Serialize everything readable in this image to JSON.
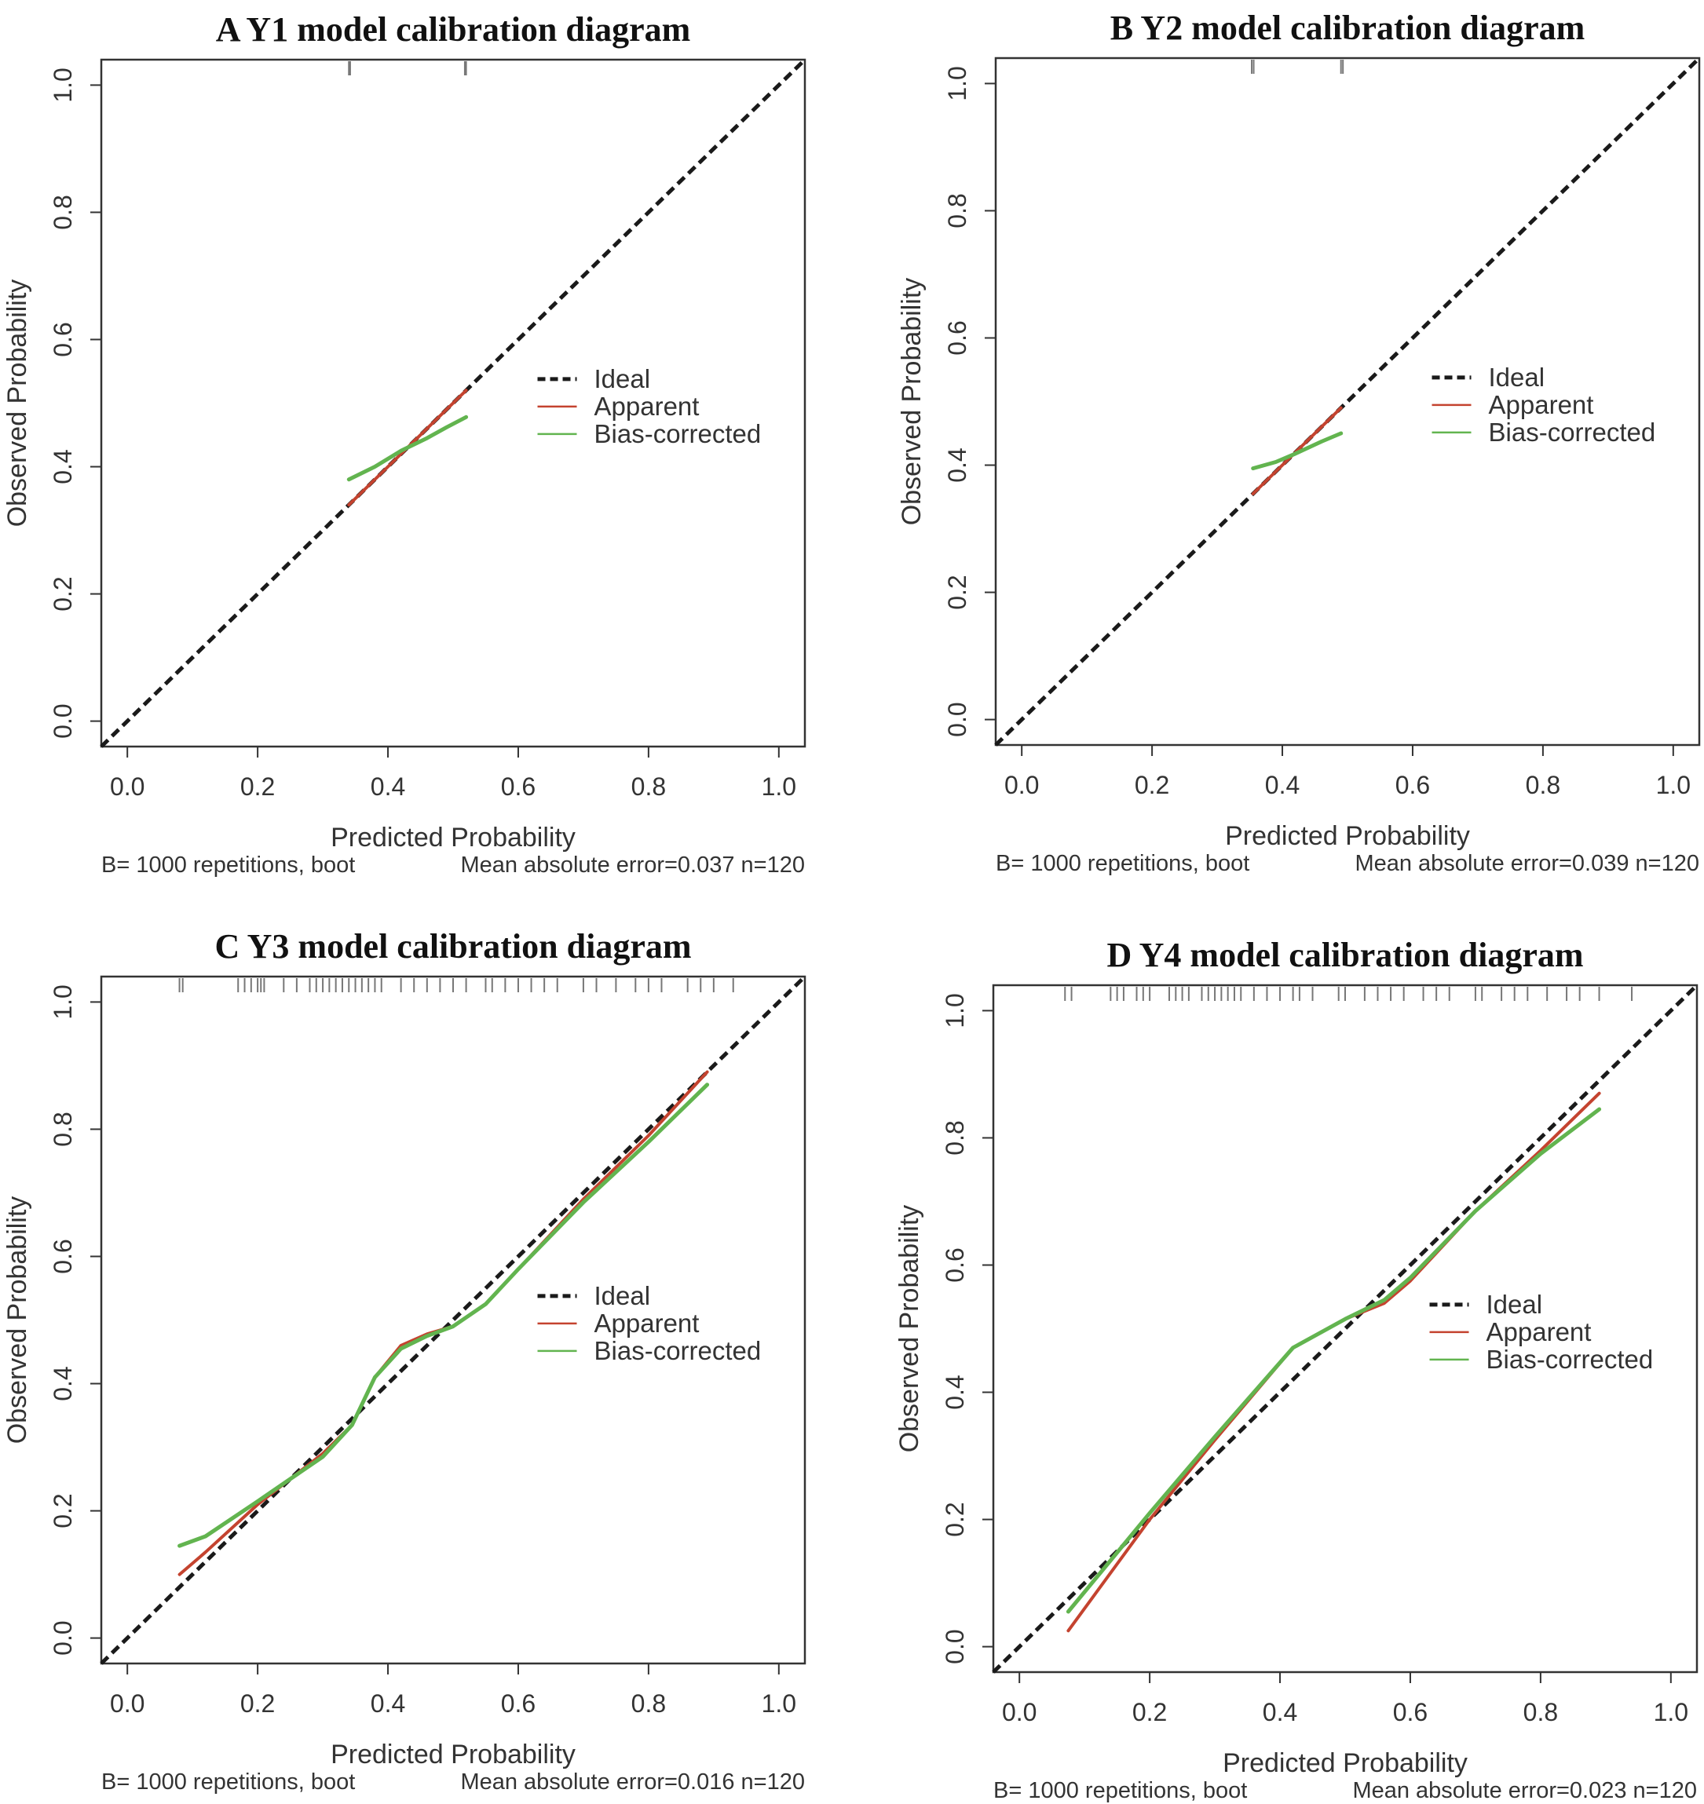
{
  "chart_data": [
    {
      "type": "line",
      "title": "A Y1 model calibration diagram",
      "xlabel": "Predicted Probability",
      "ylabel": "Observed Probability",
      "xlim": [
        -0.04,
        1.04
      ],
      "ylim": [
        -0.04,
        1.04
      ],
      "ticks": [
        "0.0",
        "0.2",
        "0.4",
        "0.6",
        "0.8",
        "1.0"
      ],
      "legend": [
        "Ideal",
        "Apparent",
        "Bias-corrected"
      ],
      "legend_position": "right",
      "subtitle_left": "B= 1000 repetitions, boot",
      "subtitle_right": "Mean absolute error=0.037 n=120",
      "series": [
        {
          "name": "Ideal",
          "x": [
            -0.04,
            1.04
          ],
          "y": [
            -0.04,
            1.04
          ]
        },
        {
          "name": "Apparent",
          "x": [
            0.34,
            0.43,
            0.52
          ],
          "y": [
            0.34,
            0.43,
            0.52
          ]
        },
        {
          "name": "Bias-corrected",
          "x": [
            0.34,
            0.38,
            0.42,
            0.46,
            0.49,
            0.52
          ],
          "y": [
            0.38,
            0.4,
            0.425,
            0.445,
            0.462,
            0.478
          ]
        }
      ],
      "rug": [
        0.34,
        0.342,
        0.518,
        0.52
      ]
    },
    {
      "type": "line",
      "title": "B Y2 model calibration diagram",
      "xlabel": "Predicted Probability",
      "ylabel": "Observed Probability",
      "xlim": [
        -0.04,
        1.04
      ],
      "ylim": [
        -0.04,
        1.04
      ],
      "ticks": [
        "0.0",
        "0.2",
        "0.4",
        "0.6",
        "0.8",
        "1.0"
      ],
      "legend": [
        "Ideal",
        "Apparent",
        "Bias-corrected"
      ],
      "legend_position": "right",
      "subtitle_left": "B= 1000 repetitions, boot",
      "subtitle_right": "Mean absolute error=0.039 n=120",
      "series": [
        {
          "name": "Ideal",
          "x": [
            -0.04,
            1.04
          ],
          "y": [
            -0.04,
            1.04
          ]
        },
        {
          "name": "Apparent",
          "x": [
            0.355,
            0.42,
            0.49
          ],
          "y": [
            0.355,
            0.42,
            0.49
          ]
        },
        {
          "name": "Bias-corrected",
          "x": [
            0.355,
            0.39,
            0.42,
            0.46,
            0.49
          ],
          "y": [
            0.395,
            0.405,
            0.418,
            0.437,
            0.45
          ]
        }
      ],
      "rug": [
        0.353,
        0.356,
        0.49,
        0.493
      ]
    },
    {
      "type": "line",
      "title": "C Y3 model calibration diagram",
      "xlabel": "Predicted Probability",
      "ylabel": "Observed Probability",
      "xlim": [
        -0.04,
        1.04
      ],
      "ylim": [
        -0.04,
        1.04
      ],
      "ticks": [
        "0.0",
        "0.2",
        "0.4",
        "0.6",
        "0.8",
        "1.0"
      ],
      "legend": [
        "Ideal",
        "Apparent",
        "Bias-corrected"
      ],
      "legend_position": "right",
      "subtitle_left": "B= 1000 repetitions, boot",
      "subtitle_right": "Mean absolute error=0.016 n=120",
      "series": [
        {
          "name": "Ideal",
          "x": [
            -0.04,
            1.04
          ],
          "y": [
            -0.04,
            1.04
          ]
        },
        {
          "name": "Apparent",
          "x": [
            0.08,
            0.12,
            0.2,
            0.25,
            0.3,
            0.345,
            0.38,
            0.42,
            0.46,
            0.5,
            0.55,
            0.6,
            0.7,
            0.8,
            0.89
          ],
          "y": [
            0.1,
            0.135,
            0.21,
            0.25,
            0.29,
            0.335,
            0.41,
            0.46,
            0.478,
            0.49,
            0.525,
            0.58,
            0.69,
            0.79,
            0.89
          ]
        },
        {
          "name": "Bias-corrected",
          "x": [
            0.08,
            0.12,
            0.2,
            0.25,
            0.3,
            0.345,
            0.38,
            0.42,
            0.46,
            0.5,
            0.55,
            0.6,
            0.7,
            0.8,
            0.89
          ],
          "y": [
            0.145,
            0.16,
            0.215,
            0.25,
            0.285,
            0.335,
            0.41,
            0.455,
            0.475,
            0.49,
            0.525,
            0.58,
            0.685,
            0.78,
            0.87
          ]
        }
      ],
      "rug": [
        0.08,
        0.085,
        0.17,
        0.18,
        0.19,
        0.2,
        0.205,
        0.21,
        0.24,
        0.26,
        0.28,
        0.29,
        0.3,
        0.31,
        0.32,
        0.33,
        0.34,
        0.35,
        0.36,
        0.37,
        0.38,
        0.39,
        0.42,
        0.44,
        0.46,
        0.48,
        0.5,
        0.52,
        0.55,
        0.56,
        0.58,
        0.6,
        0.62,
        0.64,
        0.66,
        0.7,
        0.72,
        0.75,
        0.78,
        0.8,
        0.82,
        0.86,
        0.88,
        0.9,
        0.93
      ]
    },
    {
      "type": "line",
      "title": "D Y4 model calibration diagram",
      "xlabel": "Predicted Probability",
      "ylabel": "Observed Probability",
      "xlim": [
        -0.04,
        1.04
      ],
      "ylim": [
        -0.04,
        1.04
      ],
      "ticks": [
        "0.0",
        "0.2",
        "0.4",
        "0.6",
        "0.8",
        "1.0"
      ],
      "legend": [
        "Ideal",
        "Apparent",
        "Bias-corrected"
      ],
      "legend_position": "right",
      "subtitle_left": "B= 1000 repetitions, boot",
      "subtitle_right": "Mean absolute error=0.023 n=120",
      "series": [
        {
          "name": "Ideal",
          "x": [
            -0.04,
            1.04
          ],
          "y": [
            -0.04,
            1.04
          ]
        },
        {
          "name": "Apparent",
          "x": [
            0.075,
            0.2,
            0.3,
            0.42,
            0.5,
            0.56,
            0.6,
            0.7,
            0.8,
            0.89
          ],
          "y": [
            0.025,
            0.2,
            0.325,
            0.47,
            0.515,
            0.54,
            0.575,
            0.685,
            0.78,
            0.87
          ]
        },
        {
          "name": "Bias-corrected",
          "x": [
            0.075,
            0.2,
            0.3,
            0.42,
            0.5,
            0.56,
            0.6,
            0.7,
            0.8,
            0.89
          ],
          "y": [
            0.055,
            0.21,
            0.33,
            0.47,
            0.515,
            0.545,
            0.58,
            0.685,
            0.775,
            0.845
          ]
        }
      ],
      "rug": [
        0.07,
        0.08,
        0.14,
        0.15,
        0.16,
        0.18,
        0.19,
        0.2,
        0.23,
        0.24,
        0.25,
        0.26,
        0.28,
        0.29,
        0.3,
        0.31,
        0.32,
        0.33,
        0.34,
        0.36,
        0.38,
        0.4,
        0.42,
        0.43,
        0.45,
        0.49,
        0.5,
        0.53,
        0.55,
        0.57,
        0.59,
        0.62,
        0.64,
        0.66,
        0.7,
        0.71,
        0.74,
        0.76,
        0.78,
        0.81,
        0.84,
        0.86,
        0.89,
        0.94
      ]
    }
  ],
  "colors": {
    "ideal": "#1a1a1a",
    "apparent": "#c4432f",
    "bias_corrected": "#62b44f",
    "rug": "#777777"
  }
}
